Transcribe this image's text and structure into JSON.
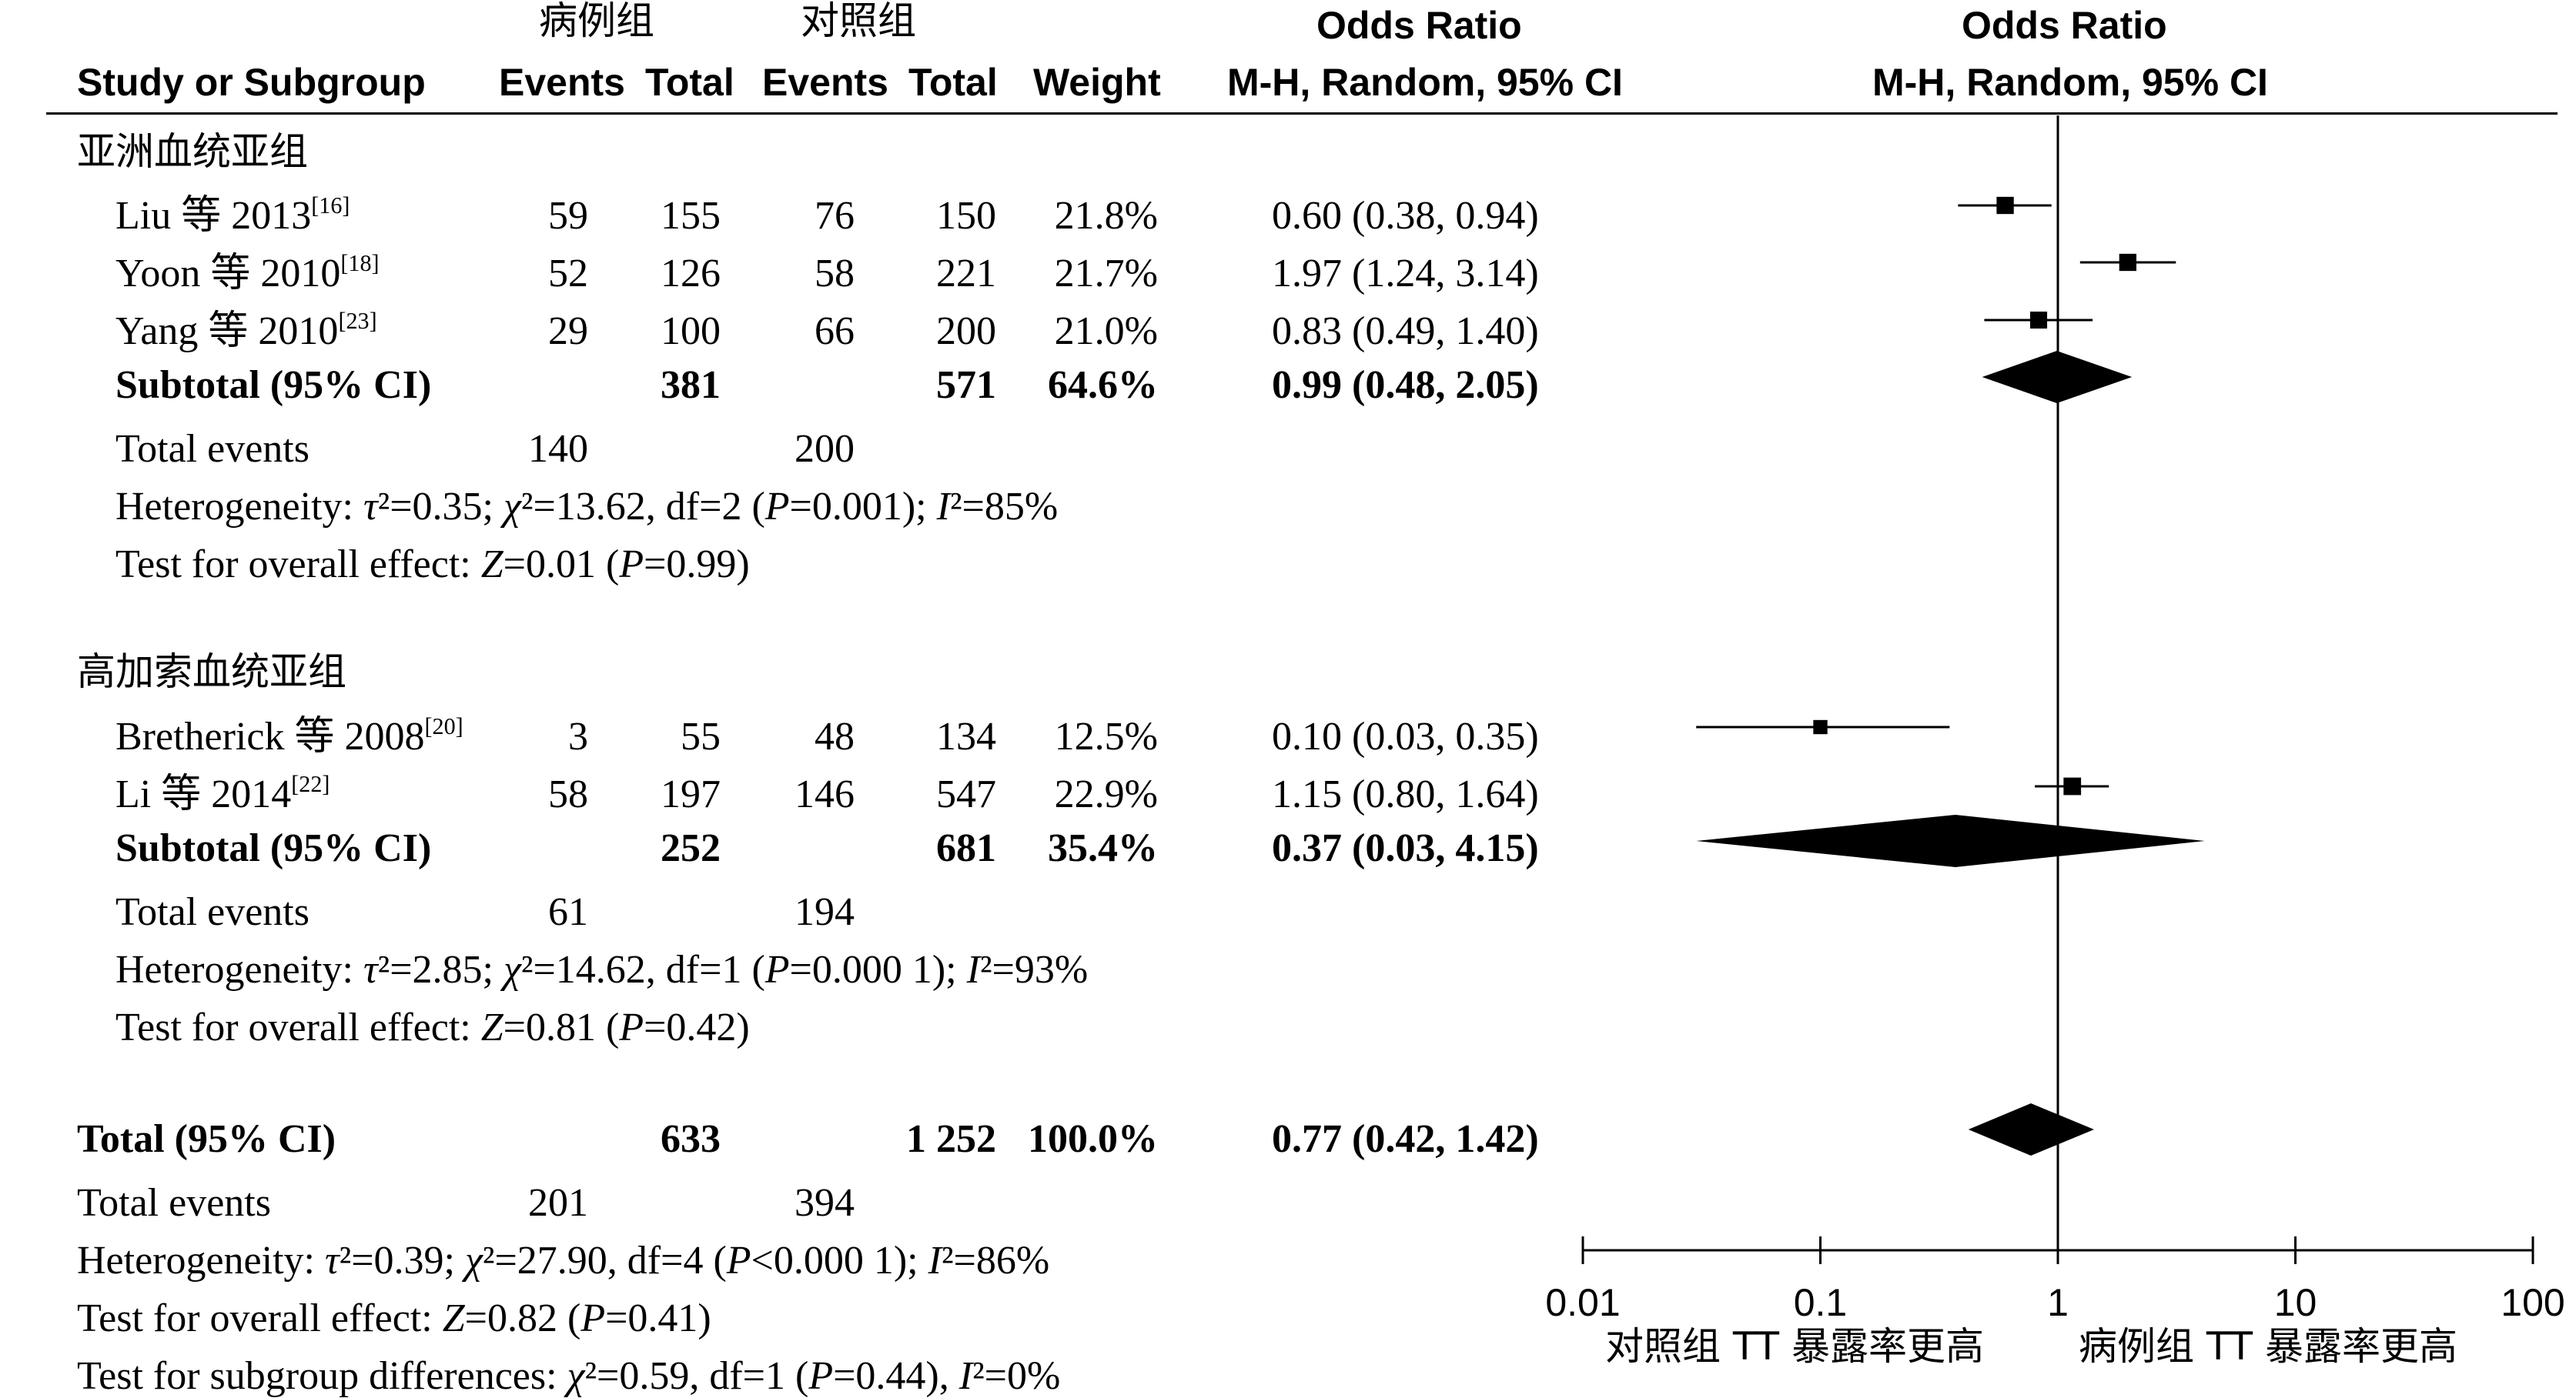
{
  "header": {
    "case_group": "病例组",
    "control_group": "对照组",
    "study_label": "Study or Subgroup",
    "events": "Events",
    "total": "Total",
    "weight": "Weight",
    "or_title": "Odds Ratio",
    "or_method": "M-H, Random, 95% CI"
  },
  "subgroups": [
    {
      "title": "亚洲血统亚组",
      "studies": [
        {
          "name": "Liu 等 2013",
          "ref": "[16]",
          "case_events": "59",
          "case_total": "155",
          "ctrl_events": "76",
          "ctrl_total": "150",
          "weight": "21.8%",
          "or_text": "0.60 (0.38, 0.94)"
        },
        {
          "name": "Yoon 等 2010",
          "ref": "[18]",
          "case_events": "52",
          "case_total": "126",
          "ctrl_events": "58",
          "ctrl_total": "221",
          "weight": "21.7%",
          "or_text": "1.97 (1.24, 3.14)"
        },
        {
          "name": "Yang 等 2010",
          "ref": "[23]",
          "case_events": "29",
          "case_total": "100",
          "ctrl_events": "66",
          "ctrl_total": "200",
          "weight": "21.0%",
          "or_text": "0.83 (0.49, 1.40)"
        }
      ],
      "subtotal": {
        "label": "Subtotal (95% CI)",
        "case_total": "381",
        "ctrl_total": "571",
        "weight": "64.6%",
        "or_text": "0.99 (0.48, 2.05)"
      },
      "total_events": {
        "label": "Total events",
        "case": "140",
        "ctrl": "200"
      },
      "heterogeneity": {
        "label": "Heterogeneity: ",
        "tau2": "=0.35; ",
        "chi2": "=13.62, df=2 (",
        "p": "=0.001); ",
        "i2": "=85%"
      },
      "overall": {
        "label": "Test for overall effect: ",
        "z": "=0.01 (",
        "p": "=0.99)"
      }
    },
    {
      "title": "高加索血统亚组",
      "studies": [
        {
          "name": "Bretherick 等 2008",
          "ref": "[20]",
          "case_events": "3",
          "case_total": "55",
          "ctrl_events": "48",
          "ctrl_total": "134",
          "weight": "12.5%",
          "or_text": "0.10 (0.03, 0.35)"
        },
        {
          "name": "Li 等 2014",
          "ref": "[22]",
          "case_events": "58",
          "case_total": "197",
          "ctrl_events": "146",
          "ctrl_total": "547",
          "weight": "22.9%",
          "or_text": "1.15 (0.80, 1.64)"
        }
      ],
      "subtotal": {
        "label": "Subtotal (95% CI)",
        "case_total": "252",
        "ctrl_total": "681",
        "weight": "35.4%",
        "or_text": "0.37 (0.03, 4.15)"
      },
      "total_events": {
        "label": "Total events",
        "case": "61",
        "ctrl": "194"
      },
      "heterogeneity": {
        "label": "Heterogeneity: ",
        "tau2": "=2.85; ",
        "chi2": "=14.62, df=1 (",
        "p": "=0.000 1); ",
        "i2": "=93%"
      },
      "overall": {
        "label": "Test for overall effect: ",
        "z": "=0.81 (",
        "p": "=0.42)"
      }
    }
  ],
  "total": {
    "label": "Total (95% CI)",
    "case_total": "633",
    "ctrl_total": "1 252",
    "weight": "100.0%",
    "or_text": "0.77 (0.42, 1.42)",
    "total_events": {
      "label": "Total events",
      "case": "201",
      "ctrl": "394"
    },
    "heterogeneity": {
      "label": "Heterogeneity: ",
      "tau2": "=0.39; ",
      "chi2": "=27.90, df=4 (",
      "p": "<0.000 1); ",
      "i2": "=86%"
    },
    "overall": {
      "label": "Test for overall effect: ",
      "z": "=0.82 (",
      "p": "=0.41)"
    },
    "subgroup_diff": {
      "label": "Test for subgroup differences: ",
      "chi2": "=0.59, df=1 (",
      "p": "=0.44), ",
      "i2": "=0%"
    }
  },
  "axis": {
    "ticks": [
      "0.01",
      "0.1",
      "1",
      "10",
      "100"
    ],
    "left_label": "对照组 TT 暴露率更高",
    "right_label": "病例组 TT 暴露率更高"
  },
  "chart_data": {
    "type": "forest",
    "xscale": "log",
    "xlim": [
      0.01,
      100
    ],
    "reference_line": 1,
    "studies": [
      {
        "name": "Liu 等 2013",
        "subgroup": "亚洲血统亚组",
        "or": 0.6,
        "lower": 0.38,
        "upper": 0.94,
        "weight": 21.8
      },
      {
        "name": "Yoon 等 2010",
        "subgroup": "亚洲血统亚组",
        "or": 1.97,
        "lower": 1.24,
        "upper": 3.14,
        "weight": 21.7
      },
      {
        "name": "Yang 等 2010",
        "subgroup": "亚洲血统亚组",
        "or": 0.83,
        "lower": 0.49,
        "upper": 1.4,
        "weight": 21.0
      },
      {
        "name": "Bretherick 等 2008",
        "subgroup": "高加索血统亚组",
        "or": 0.1,
        "lower": 0.03,
        "upper": 0.35,
        "weight": 12.5
      },
      {
        "name": "Li 等 2014",
        "subgroup": "高加索血统亚组",
        "or": 1.15,
        "lower": 0.8,
        "upper": 1.64,
        "weight": 22.9
      }
    ],
    "pooled": [
      {
        "name": "Subtotal (95% CI)",
        "subgroup": "亚洲血统亚组",
        "or": 0.99,
        "lower": 0.48,
        "upper": 2.05
      },
      {
        "name": "Subtotal (95% CI)",
        "subgroup": "高加索血统亚组",
        "or": 0.37,
        "lower": 0.03,
        "upper": 4.15
      },
      {
        "name": "Total (95% CI)",
        "subgroup": "",
        "or": 0.77,
        "lower": 0.42,
        "upper": 1.42
      }
    ]
  }
}
